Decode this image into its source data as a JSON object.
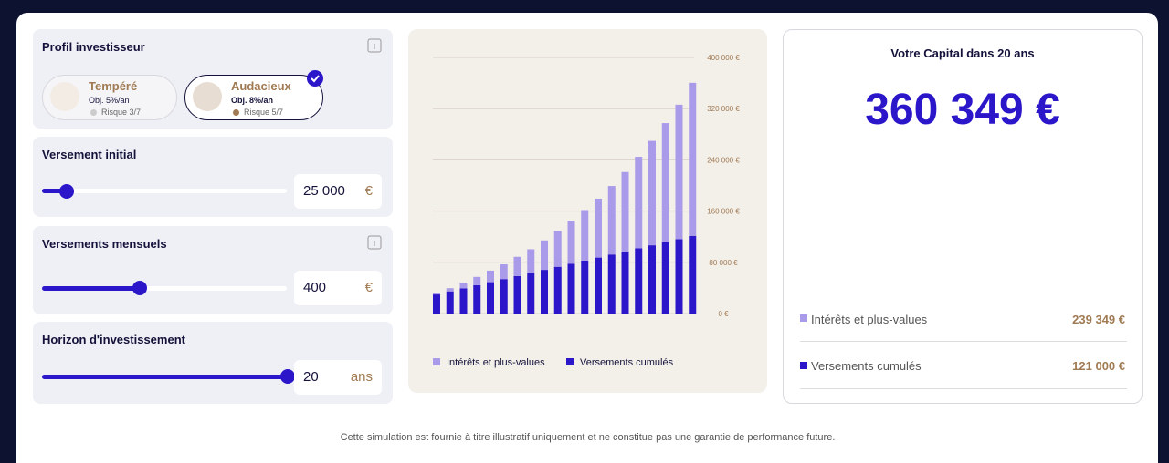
{
  "profile": {
    "title": "Profil investisseur",
    "options": [
      {
        "name": "Tempéré",
        "objective": "Obj. 5%/an",
        "risk": "Risque 3/7"
      },
      {
        "name": "Audacieux",
        "objective": "Obj. 8%/an",
        "risk": "Risque 5/7"
      }
    ]
  },
  "initial": {
    "label": "Versement initial",
    "value": "25 000",
    "unit": "€"
  },
  "monthly": {
    "label": "Versements mensuels",
    "value": "400",
    "unit": "€"
  },
  "horizon": {
    "label": "Horizon d'investissement",
    "value": "20",
    "unit": "ans"
  },
  "chart_data": {
    "type": "bar",
    "stacked": true,
    "series": [
      {
        "name": "Intérêts et plus-values",
        "color": "#a99be9",
        "values": [
          2000,
          5000,
          9000,
          13000,
          18000,
          23000,
          30000,
          37000,
          46000,
          56000,
          67000,
          79000,
          92000,
          107000,
          124000,
          143000,
          163000,
          186000,
          210000,
          239349
        ]
      },
      {
        "name": "Versements cumulés",
        "color": "#2b16c9",
        "values": [
          29800,
          34600,
          39400,
          44200,
          49000,
          53800,
          58600,
          63400,
          68200,
          73000,
          77800,
          82600,
          87400,
          92200,
          97000,
          101800,
          106600,
          111400,
          116200,
          121000
        ]
      }
    ],
    "ylim": [
      0,
      400000
    ],
    "yticks": [
      {
        "value": 0,
        "label": "0 €"
      },
      {
        "value": 80000,
        "label": "80 000 €"
      },
      {
        "value": 160000,
        "label": "160 000 €"
      },
      {
        "value": 240000,
        "label": "240 000 €"
      },
      {
        "value": 320000,
        "label": "320 000 €"
      },
      {
        "value": 400000,
        "label": "400 000 €"
      }
    ],
    "grid": true
  },
  "summary": {
    "title": "Votre Capital dans 20 ans",
    "total": "360 349 €",
    "rows": [
      {
        "label": "Intérêts et plus-values",
        "value": "239 349 €"
      },
      {
        "label": "Versements cumulés",
        "value": "121 000 €"
      }
    ]
  },
  "disclaimer": "Cette simulation est fournie à titre illustratif uniquement et ne constitue pas une garantie de performance future."
}
